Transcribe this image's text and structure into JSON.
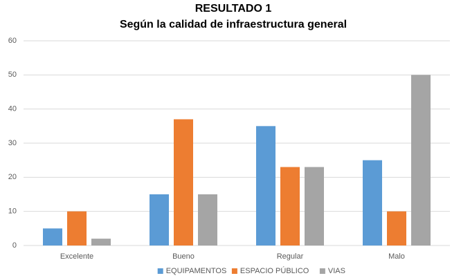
{
  "chart_data": {
    "type": "bar",
    "title": "RESULTADO 1",
    "subtitle": "Según la calidad de infraestructura general",
    "categories": [
      "Excelente",
      "Bueno",
      "Regular",
      "Malo"
    ],
    "series": [
      {
        "name": "EQUIPAMENTOS",
        "color": "#5b9bd5",
        "values": [
          5,
          15,
          35,
          25
        ]
      },
      {
        "name": "ESPACIO PÚBLICO",
        "color": "#ed7d31",
        "values": [
          10,
          37,
          23,
          10
        ]
      },
      {
        "name": "VIAS",
        "color": "#a5a5a5",
        "values": [
          2,
          15,
          23,
          50
        ]
      }
    ],
    "ylim": [
      0,
      60
    ],
    "yticks": [
      0,
      10,
      20,
      30,
      40,
      50,
      60
    ],
    "grid": true,
    "legend": "bottom"
  }
}
